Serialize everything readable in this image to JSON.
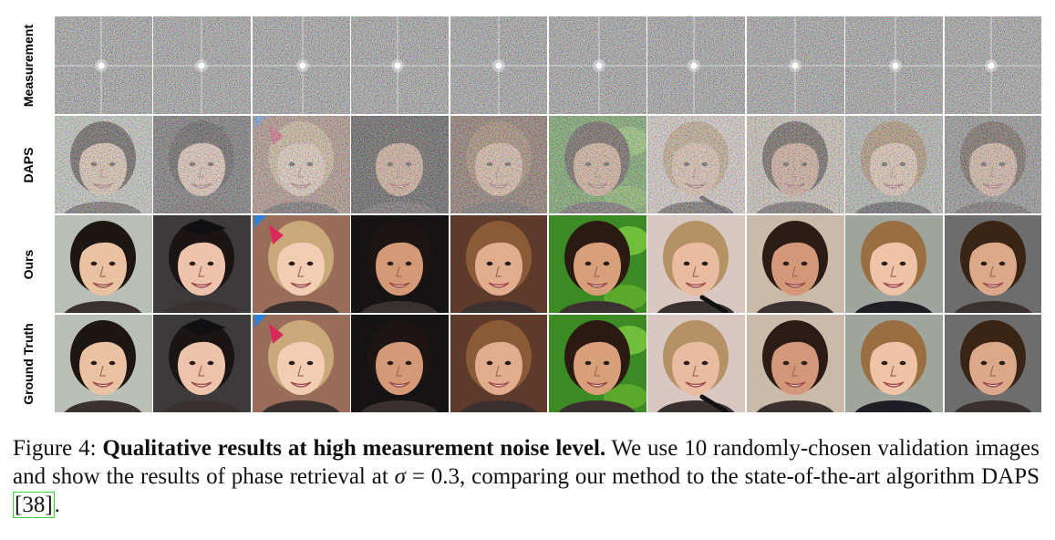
{
  "figure": {
    "rows": [
      {
        "label": "Measurement",
        "kind": "measurement"
      },
      {
        "label": "DAPS",
        "kind": "daps"
      },
      {
        "label": "Ours",
        "kind": "ours"
      },
      {
        "label": "Ground Truth",
        "kind": "gt"
      }
    ],
    "columns": [
      {
        "skin": "#e9c2a2",
        "hair": "#1e1612",
        "bg": "#b9bfb6"
      },
      {
        "skin": "#eec3ac",
        "hair": "#1a1414",
        "bg": "#3d3a3c"
      },
      {
        "skin": "#f1cdb4",
        "hair": "#c9a879",
        "bg": "#9a6c5a"
      },
      {
        "skin": "#d49a78",
        "hair": "#1c1513",
        "bg": "#151314"
      },
      {
        "skin": "#e2ad8e",
        "hair": "#8b5b38",
        "bg": "#5e3a2a"
      },
      {
        "skin": "#d8a07a",
        "hair": "#2a1a12",
        "bg": "#3c8a24"
      },
      {
        "skin": "#e9bba0",
        "hair": "#b49266",
        "bg": "#d9c7c2"
      },
      {
        "skin": "#d3987a",
        "hair": "#2b1c16",
        "bg": "#c9baa9"
      },
      {
        "skin": "#eec3a7",
        "hair": "#9a6e40",
        "bg": "#9fa49d"
      },
      {
        "skin": "#dca88a",
        "hair": "#3a2416",
        "bg": "#6d6d6d"
      }
    ]
  },
  "caption": {
    "prefix": "Figure 4: ",
    "bold": "Qualitative results at high measurement noise level.",
    "text_a": " We use 10 randomly-chosen validation images and show the results of phase retrieval at ",
    "sigma": "σ",
    "text_b": " = 0.3, comparing our method to the state-of-the-art algorithm DAPS ",
    "ref": "[38]",
    "text_c": "."
  }
}
